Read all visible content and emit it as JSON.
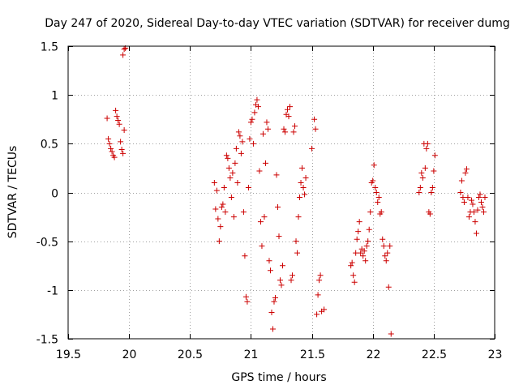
{
  "chart_data": {
    "type": "scatter",
    "title": "Day 247 of 2020, Sidereal Day-to-day VTEC variation (SDTVAR) for receiver dumg",
    "xlabel": "GPS time / hours",
    "ylabel": "SDTVAR / TECUs",
    "xlim": [
      19.5,
      23
    ],
    "ylim": [
      -1.5,
      1.5
    ],
    "grid": true,
    "marker": "plus",
    "color": "#cc0000",
    "xticks": [
      19.5,
      20,
      20.5,
      21,
      21.5,
      22,
      22.5,
      23
    ],
    "xtick_labels": [
      "19.5",
      "20",
      "20.5",
      "21",
      "21.5",
      "22",
      "22.5",
      "23"
    ],
    "yticks": [
      -1.5,
      -1,
      -0.5,
      0,
      0.5,
      1,
      1.5
    ],
    "ytick_labels": [
      "-1.5",
      "-1",
      "-0.5",
      "0",
      "0.5",
      "1",
      "1.5"
    ],
    "points": [
      [
        19.82,
        0.76
      ],
      [
        19.83,
        0.55
      ],
      [
        19.84,
        0.5
      ],
      [
        19.85,
        0.45
      ],
      [
        19.86,
        0.42
      ],
      [
        19.87,
        0.38
      ],
      [
        19.88,
        0.36
      ],
      [
        19.89,
        0.84
      ],
      [
        19.9,
        0.78
      ],
      [
        19.91,
        0.74
      ],
      [
        19.92,
        0.7
      ],
      [
        19.93,
        0.52
      ],
      [
        19.94,
        0.44
      ],
      [
        19.95,
        0.4
      ],
      [
        19.96,
        0.64
      ],
      [
        19.95,
        1.41
      ],
      [
        19.96,
        1.47
      ],
      [
        19.97,
        1.48
      ],
      [
        20.7,
        0.1
      ],
      [
        20.71,
        -0.17
      ],
      [
        20.72,
        0.02
      ],
      [
        20.73,
        -0.27
      ],
      [
        20.74,
        -0.5
      ],
      [
        20.75,
        -0.35
      ],
      [
        20.76,
        -0.15
      ],
      [
        20.77,
        -0.12
      ],
      [
        20.78,
        0.05
      ],
      [
        20.79,
        -0.2
      ],
      [
        20.8,
        0.38
      ],
      [
        20.81,
        0.35
      ],
      [
        20.82,
        0.25
      ],
      [
        20.83,
        0.15
      ],
      [
        20.84,
        -0.05
      ],
      [
        20.85,
        0.2
      ],
      [
        20.86,
        -0.25
      ],
      [
        20.87,
        0.3
      ],
      [
        20.88,
        0.45
      ],
      [
        20.89,
        0.1
      ],
      [
        20.9,
        0.62
      ],
      [
        20.91,
        0.58
      ],
      [
        20.92,
        0.4
      ],
      [
        20.93,
        0.52
      ],
      [
        20.94,
        -0.2
      ],
      [
        20.95,
        -0.65
      ],
      [
        20.96,
        -1.07
      ],
      [
        20.97,
        -1.12
      ],
      [
        20.98,
        0.05
      ],
      [
        20.99,
        0.55
      ],
      [
        21.0,
        0.72
      ],
      [
        21.01,
        0.75
      ],
      [
        21.02,
        0.5
      ],
      [
        21.03,
        0.82
      ],
      [
        21.04,
        0.9
      ],
      [
        21.05,
        0.95
      ],
      [
        21.06,
        0.88
      ],
      [
        21.07,
        0.22
      ],
      [
        21.08,
        -0.3
      ],
      [
        21.09,
        -0.55
      ],
      [
        21.1,
        0.6
      ],
      [
        21.11,
        -0.25
      ],
      [
        21.12,
        0.3
      ],
      [
        21.13,
        0.72
      ],
      [
        21.14,
        0.65
      ],
      [
        21.15,
        -0.7
      ],
      [
        21.16,
        -0.8
      ],
      [
        21.17,
        -1.23
      ],
      [
        21.18,
        -1.4
      ],
      [
        21.19,
        -1.12
      ],
      [
        21.2,
        -1.08
      ],
      [
        21.21,
        0.18
      ],
      [
        21.22,
        -0.15
      ],
      [
        21.23,
        -0.45
      ],
      [
        21.24,
        -0.9
      ],
      [
        21.25,
        -0.95
      ],
      [
        21.26,
        -0.75
      ],
      [
        21.27,
        0.65
      ],
      [
        21.28,
        0.62
      ],
      [
        21.29,
        0.8
      ],
      [
        21.3,
        0.85
      ],
      [
        21.31,
        0.78
      ],
      [
        21.32,
        0.88
      ],
      [
        21.33,
        -0.9
      ],
      [
        21.34,
        -0.85
      ],
      [
        21.35,
        0.62
      ],
      [
        21.36,
        0.68
      ],
      [
        21.37,
        -0.5
      ],
      [
        21.38,
        -0.62
      ],
      [
        21.39,
        -0.25
      ],
      [
        21.4,
        -0.05
      ],
      [
        21.41,
        0.1
      ],
      [
        21.42,
        0.25
      ],
      [
        21.43,
        0.05
      ],
      [
        21.44,
        -0.02
      ],
      [
        21.45,
        0.15
      ],
      [
        21.5,
        0.45
      ],
      [
        21.52,
        0.75
      ],
      [
        21.53,
        0.65
      ],
      [
        21.54,
        -1.25
      ],
      [
        21.55,
        -1.05
      ],
      [
        21.56,
        -0.9
      ],
      [
        21.57,
        -0.85
      ],
      [
        21.58,
        -1.22
      ],
      [
        21.6,
        -1.2
      ],
      [
        21.82,
        -0.75
      ],
      [
        21.83,
        -0.72
      ],
      [
        21.84,
        -0.85
      ],
      [
        21.85,
        -0.92
      ],
      [
        21.86,
        -0.62
      ],
      [
        21.87,
        -0.48
      ],
      [
        21.88,
        -0.4
      ],
      [
        21.89,
        -0.3
      ],
      [
        21.9,
        -0.62
      ],
      [
        21.91,
        -0.58
      ],
      [
        21.92,
        -0.65
      ],
      [
        21.93,
        -0.6
      ],
      [
        21.94,
        -0.7
      ],
      [
        21.95,
        -0.55
      ],
      [
        21.96,
        -0.5
      ],
      [
        21.97,
        -0.38
      ],
      [
        21.98,
        -0.2
      ],
      [
        21.99,
        0.1
      ],
      [
        22.0,
        0.12
      ],
      [
        22.01,
        0.28
      ],
      [
        22.02,
        0.05
      ],
      [
        22.03,
        0.0
      ],
      [
        22.04,
        -0.1
      ],
      [
        22.05,
        -0.05
      ],
      [
        22.06,
        -0.22
      ],
      [
        22.07,
        -0.2
      ],
      [
        22.08,
        -0.48
      ],
      [
        22.09,
        -0.55
      ],
      [
        22.1,
        -0.65
      ],
      [
        22.11,
        -0.7
      ],
      [
        22.12,
        -0.62
      ],
      [
        22.13,
        -0.97
      ],
      [
        22.14,
        -0.55
      ],
      [
        22.15,
        -1.45
      ],
      [
        22.38,
        0.0
      ],
      [
        22.39,
        0.05
      ],
      [
        22.4,
        0.2
      ],
      [
        22.41,
        0.15
      ],
      [
        22.42,
        0.5
      ],
      [
        22.43,
        0.25
      ],
      [
        22.44,
        0.45
      ],
      [
        22.45,
        0.5
      ],
      [
        22.46,
        -0.2
      ],
      [
        22.47,
        -0.22
      ],
      [
        22.48,
        0.0
      ],
      [
        22.49,
        0.05
      ],
      [
        22.5,
        0.22
      ],
      [
        22.51,
        0.38
      ],
      [
        22.72,
        0.0
      ],
      [
        22.73,
        0.12
      ],
      [
        22.74,
        -0.05
      ],
      [
        22.75,
        -0.1
      ],
      [
        22.76,
        0.2
      ],
      [
        22.77,
        0.24
      ],
      [
        22.78,
        -0.05
      ],
      [
        22.79,
        -0.25
      ],
      [
        22.8,
        -0.2
      ],
      [
        22.81,
        -0.08
      ],
      [
        22.82,
        -0.12
      ],
      [
        22.83,
        -0.2
      ],
      [
        22.84,
        -0.3
      ],
      [
        22.85,
        -0.42
      ],
      [
        22.86,
        -0.18
      ],
      [
        22.87,
        -0.05
      ],
      [
        22.88,
        -0.02
      ],
      [
        22.89,
        -0.1
      ],
      [
        22.9,
        -0.15
      ],
      [
        22.91,
        -0.2
      ],
      [
        22.92,
        -0.05
      ]
    ]
  }
}
